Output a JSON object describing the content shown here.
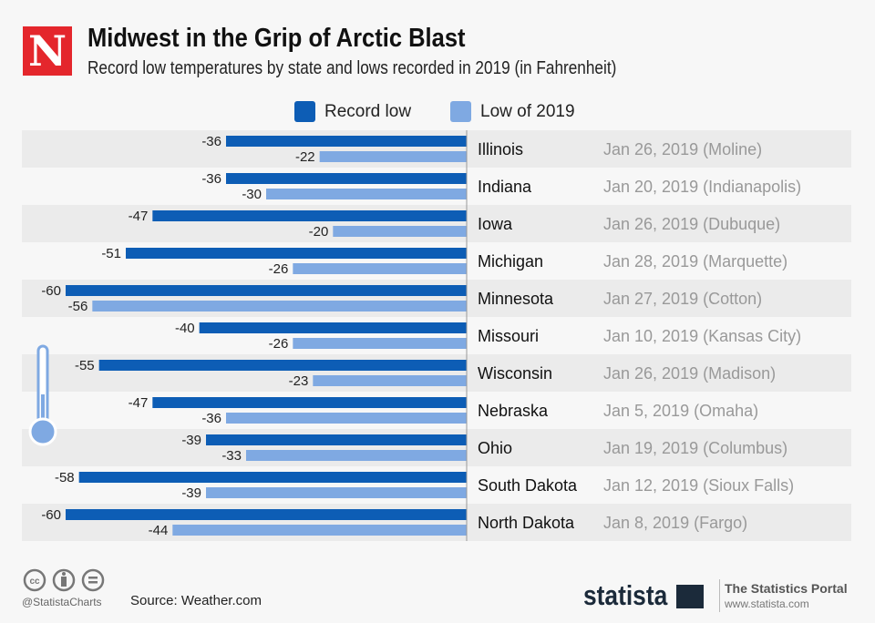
{
  "header": {
    "logo": "N",
    "title": "Midwest in the Grip of Arctic Blast",
    "subtitle": "Record low temperatures by state and lows recorded in 2019 (in Fahrenheit)"
  },
  "colors": {
    "record": "#0d5db5",
    "low2019": "#7fa9e2",
    "band": "#ebebeb"
  },
  "chart_data": {
    "type": "bar",
    "orientation": "horizontal",
    "title": "Midwest in the Grip of Arctic Blast",
    "legend": [
      "Record low",
      "Low of 2019"
    ],
    "legend_position": "top",
    "categories": [
      "Illinois",
      "Indiana",
      "Iowa",
      "Michigan",
      "Minnesota",
      "Missouri",
      "Wisconsin",
      "Nebraska",
      "Ohio",
      "South Dakota",
      "North Dakota"
    ],
    "annotations": [
      "Jan 26, 2019 (Moline)",
      "Jan 20, 2019 (Indianapolis)",
      "Jan 26, 2019 (Dubuque)",
      "Jan 28, 2019 (Marquette)",
      "Jan 27, 2019 (Cotton)",
      "Jan 10, 2019 (Kansas City)",
      "Jan 26, 2019 (Madison)",
      "Jan 5, 2019 (Omaha)",
      "Jan 19, 2019 (Columbus)",
      "Jan 12, 2019 (Sioux Falls)",
      "Jan 8, 2019 (Fargo)"
    ],
    "series": [
      {
        "name": "Record low",
        "values": [
          -36,
          -36,
          -47,
          -51,
          -60,
          -40,
          -55,
          -47,
          -39,
          -58,
          -60
        ]
      },
      {
        "name": "Low of 2019",
        "values": [
          -22,
          -30,
          -20,
          -26,
          -56,
          -26,
          -23,
          -36,
          -33,
          -39,
          -44
        ]
      }
    ],
    "xlim": [
      -60,
      0
    ]
  },
  "footer": {
    "handle": "@StatistaCharts",
    "source": "Source: Weather.com",
    "brand": "statista",
    "portal": "The Statistics Portal",
    "url": "www.statista.com"
  }
}
